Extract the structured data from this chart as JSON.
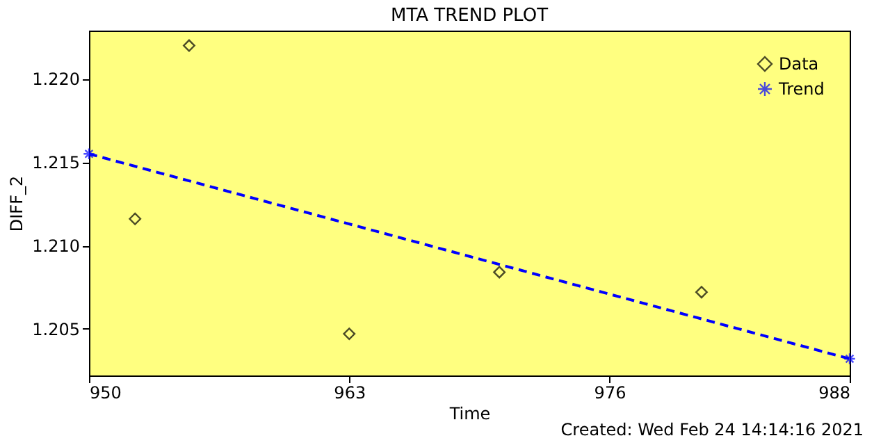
{
  "chart_data": {
    "type": "scatter",
    "title": "MTA TREND PLOT",
    "xlabel": "Time",
    "ylabel": "DIFF_2",
    "annotations": [
      "Created: Wed Feb 24 14:14:16 2021"
    ],
    "xlim": [
      950,
      988
    ],
    "xticks": [
      950,
      963,
      976,
      988
    ],
    "ylim": [
      1.2022,
      1.2229
    ],
    "yticks": [
      {
        "value": 1.205,
        "label": "1.205"
      },
      {
        "value": 1.21,
        "label": "1.210"
      },
      {
        "value": 1.215,
        "label": "1.215"
      },
      {
        "value": 1.22,
        "label": "1.220"
      }
    ],
    "grid": false,
    "legend": "top right",
    "series": [
      {
        "name": "Data",
        "marker": "diamond",
        "color": "#000000",
        "x": [
          952.3,
          955.0,
          963.0,
          970.5,
          980.6
        ],
        "values": [
          1.2116,
          1.222,
          1.2047,
          1.2084,
          1.2072
        ]
      },
      {
        "name": "Trend",
        "type": "line",
        "marker": "cross",
        "line_style": "dashed",
        "color": "#0000ff",
        "x": [
          950,
          988
        ],
        "values": [
          1.2155,
          1.2032
        ]
      }
    ]
  }
}
